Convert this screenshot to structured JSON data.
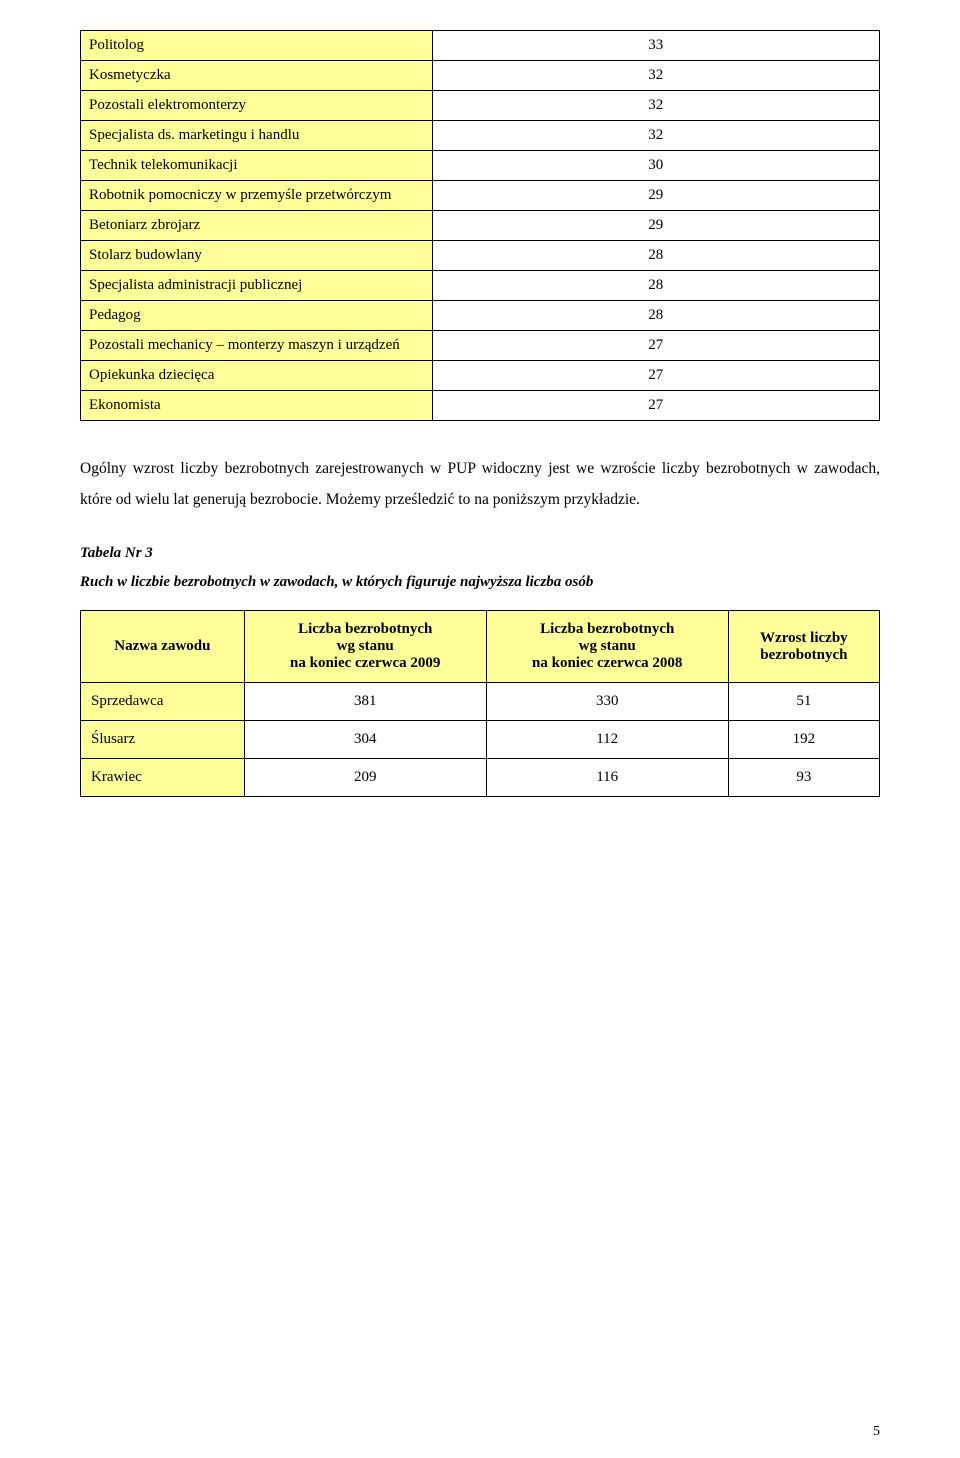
{
  "table1": {
    "rows": [
      {
        "label": "Politolog",
        "value": "33"
      },
      {
        "label": "Kosmetyczka",
        "value": "32"
      },
      {
        "label": "Pozostali elektromonterzy",
        "value": "32"
      },
      {
        "label": "Specjalista ds. marketingu i handlu",
        "value": "32"
      },
      {
        "label": "Technik telekomunikacji",
        "value": "30"
      },
      {
        "label": "Robotnik pomocniczy w przemyśle przetwórczym",
        "value": "29"
      },
      {
        "label": "Betoniarz zbrojarz",
        "value": "29"
      },
      {
        "label": "Stolarz budowlany",
        "value": "28"
      },
      {
        "label": "Specjalista administracji publicznej",
        "value": "28"
      },
      {
        "label": "Pedagog",
        "value": "28"
      },
      {
        "label": "Pozostali mechanicy – monterzy maszyn i urządzeń",
        "value": "27"
      },
      {
        "label": "Opiekunka dziecięca",
        "value": "27"
      },
      {
        "label": "Ekonomista",
        "value": "27"
      }
    ]
  },
  "paragraph": "Ogólny wzrost liczby bezrobotnych zarejestrowanych w PUP widoczny jest we wzroście liczby bezrobotnych w zawodach, które od wielu lat generują bezrobocie. Możemy prześledzić to na poniższym przykładzie.",
  "caption": {
    "line1": "Tabela Nr 3",
    "line2": "Ruch w  liczbie bezrobotnych w zawodach, w których figuruje najwyższa liczba osób"
  },
  "table2": {
    "headers": {
      "c1": "Nazwa zawodu",
      "c2_l1": "Liczba bezrobotnych",
      "c2_l2": "wg stanu",
      "c2_l3": "na koniec czerwca 2009",
      "c3_l1": "Liczba bezrobotnych",
      "c3_l2": "wg stanu",
      "c3_l3": "na koniec czerwca 2008",
      "c4_l1": "Wzrost liczby",
      "c4_l2": "bezrobotnych"
    },
    "rows": [
      {
        "label": "Sprzedawca",
        "v2009": "381",
        "v2008": "330",
        "diff": "51"
      },
      {
        "label": "Ślusarz",
        "v2009": "304",
        "v2008": "112",
        "diff": "192"
      },
      {
        "label": "Krawiec",
        "v2009": "209",
        "v2008": "116",
        "diff": "93"
      }
    ]
  },
  "page_number": "5",
  "colors": {
    "highlight": "#ffff99",
    "border": "#000000",
    "bg": "#ffffff"
  }
}
